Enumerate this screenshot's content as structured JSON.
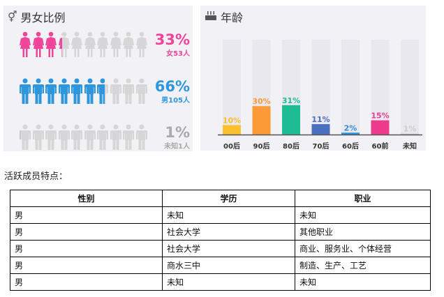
{
  "gender_panel": {
    "title": "男女比例",
    "icon": "gender-symbol-icon",
    "rows": [
      {
        "key": "female",
        "percent_label": "33%",
        "count_label": "女53人",
        "fraction": 0.33,
        "color": "#f0449a",
        "icon": "female-person-icon"
      },
      {
        "key": "male",
        "percent_label": "66%",
        "count_label": "男105人",
        "fraction": 0.66,
        "color": "#2f96dc",
        "icon": "male-person-icon"
      },
      {
        "key": "unknown",
        "percent_label": "1%",
        "count_label": "未知1人",
        "fraction": 0.01,
        "color": "#c8c8c8",
        "icon": "male-person-icon"
      }
    ],
    "inactive_color": "#d6d6d6"
  },
  "age_panel": {
    "title": "年龄",
    "icon": "cake-icon"
  },
  "chart_data": {
    "type": "bar",
    "categories": [
      "00后",
      "90后",
      "80后",
      "70后",
      "60后",
      "60前",
      "未知"
    ],
    "values": [
      10,
      30,
      31,
      11,
      2,
      15,
      1
    ],
    "value_labels": [
      "10%",
      "30%",
      "31%",
      "11%",
      "2%",
      "15%",
      "1%"
    ],
    "colors": [
      "#fbc02d",
      "#fb9a36",
      "#1cbc94",
      "#4a6fbf",
      "#2f8fd8",
      "#ee3a8c",
      "#cccccc"
    ],
    "ylim": [
      0,
      100
    ],
    "grid": false
  },
  "section_label": "活跃成员特点：",
  "table": {
    "headers": [
      "性别",
      "学历",
      "职业"
    ],
    "rows": [
      [
        "男",
        "未知",
        "未知"
      ],
      [
        "男",
        "社会大学",
        "其他职业"
      ],
      [
        "男",
        "社会大学",
        "商业、服务业、个体经营"
      ],
      [
        "男",
        "商水三中",
        "制造、生产、工艺"
      ],
      [
        "男",
        "未知",
        "未知"
      ]
    ]
  }
}
